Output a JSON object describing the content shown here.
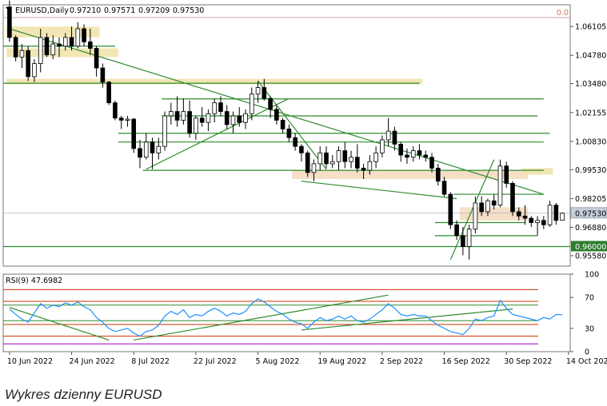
{
  "chart_data": [
    {
      "type": "candlestick",
      "header": {
        "symbol": "EURUSD,Daily",
        "values": [
          "0.97210",
          "0.97571",
          "0.97209",
          "0.97530"
        ]
      },
      "corner_label": "0.0",
      "ylim": [
        0.951,
        1.071
      ],
      "y_ticks": [
        "1.06105",
        "1.04780",
        "1.03480",
        "1.02155",
        "1.00830",
        "0.99530",
        "0.98205",
        "0.96880",
        "0.95580"
      ],
      "y_tick_values": [
        1.06105,
        1.0478,
        1.0348,
        1.02155,
        1.0083,
        0.9953,
        0.98205,
        0.9688,
        0.9558
      ],
      "current_price_label": "0.97530",
      "current_price": 0.9753,
      "highlight_level_label": "0.96000",
      "highlight_level": 0.96,
      "x_ticks": [
        "10 Jun 2022",
        "24 Jun 2022",
        "8 Jul 2022",
        "22 Jul 2022",
        "5 Aug 2022",
        "19 Aug 2022",
        "2 Sep 2022",
        "16 Sep 2022",
        "30 Sep 2022",
        "14 Oct 2022"
      ],
      "x_tick_index": [
        0,
        10,
        20,
        30,
        40,
        50,
        60,
        70,
        80,
        90
      ],
      "candles": [
        [
          1.07,
          1.073,
          1.054,
          1.056
        ],
        [
          1.056,
          1.057,
          1.045,
          1.047
        ],
        [
          1.047,
          1.053,
          1.042,
          1.05
        ],
        [
          1.05,
          1.052,
          1.036,
          1.038
        ],
        [
          1.038,
          1.046,
          1.0355,
          1.044
        ],
        [
          1.044,
          1.06,
          1.04,
          1.056
        ],
        [
          1.056,
          1.058,
          1.047,
          1.048
        ],
        [
          1.048,
          1.057,
          1.046,
          1.053
        ],
        [
          1.053,
          1.056,
          1.047,
          1.052
        ],
        [
          1.052,
          1.058,
          1.05,
          1.056
        ],
        [
          1.056,
          1.061,
          1.05,
          1.052
        ],
        [
          1.052,
          1.063,
          1.051,
          1.06
        ],
        [
          1.06,
          1.062,
          1.052,
          1.054
        ],
        [
          1.054,
          1.06,
          1.048,
          1.051
        ],
        [
          1.051,
          1.052,
          1.038,
          1.042
        ],
        [
          1.042,
          1.044,
          1.033,
          1.0355
        ],
        [
          1.0355,
          1.036,
          1.025,
          1.026
        ],
        [
          1.026,
          1.027,
          1.018,
          1.019
        ],
        [
          1.019,
          1.02,
          1.014,
          1.018
        ],
        [
          1.018,
          1.02,
          1.015,
          1.0185
        ],
        [
          1.0185,
          1.019,
          1.003,
          1.005
        ],
        [
          1.005,
          1.009,
          0.996,
          1.001
        ],
        [
          1.001,
          1.012,
          1.0,
          1.008
        ],
        [
          1.008,
          1.01,
          0.9955,
          1.003
        ],
        [
          1.003,
          1.01,
          1.0,
          1.006
        ],
        [
          1.006,
          1.022,
          1.004,
          1.02
        ],
        [
          1.02,
          1.026,
          1.016,
          1.022
        ],
        [
          1.022,
          1.029,
          1.015,
          1.018
        ],
        [
          1.018,
          1.028,
          1.016,
          1.022
        ],
        [
          1.022,
          1.027,
          1.01,
          1.012
        ],
        [
          1.012,
          1.02,
          1.009,
          1.019
        ],
        [
          1.019,
          1.024,
          1.015,
          1.017
        ],
        [
          1.017,
          1.023,
          1.013,
          1.021
        ],
        [
          1.021,
          1.028,
          1.017,
          1.026
        ],
        [
          1.026,
          1.029,
          1.02,
          1.022
        ],
        [
          1.022,
          1.025,
          1.014,
          1.016
        ],
        [
          1.016,
          1.022,
          1.012,
          1.02
        ],
        [
          1.02,
          1.024,
          1.015,
          1.017
        ],
        [
          1.017,
          1.023,
          1.014,
          1.021
        ],
        [
          1.021,
          1.033,
          1.018,
          1.03
        ],
        [
          1.03,
          1.036,
          1.026,
          1.033
        ],
        [
          1.033,
          1.037,
          1.027,
          1.028
        ],
        [
          1.028,
          1.029,
          1.019,
          1.023
        ],
        [
          1.023,
          1.025,
          1.016,
          1.018
        ],
        [
          1.018,
          1.019,
          1.012,
          1.014
        ],
        [
          1.014,
          1.016,
          1.008,
          1.01
        ],
        [
          1.01,
          1.012,
          1.004,
          1.006
        ],
        [
          1.006,
          1.007,
          0.999,
          1.003
        ],
        [
          1.003,
          1.004,
          0.992,
          0.994
        ],
        [
          0.994,
          1.0,
          0.99,
          0.998
        ],
        [
          0.998,
          1.006,
          0.995,
          1.003
        ],
        [
          1.003,
          1.006,
          0.996,
          0.998
        ],
        [
          0.998,
          1.002,
          0.996,
          0.999
        ],
        [
          0.999,
          1.006,
          0.995,
          1.004
        ],
        [
          1.004,
          1.008,
          0.996,
          0.999
        ],
        [
          0.999,
          1.004,
          0.996,
          1.001
        ],
        [
          1.001,
          1.007,
          0.994,
          0.996
        ],
        [
          0.996,
          0.998,
          0.991,
          0.995
        ],
        [
          0.995,
          1.002,
          0.993,
          0.999
        ],
        [
          0.999,
          1.006,
          0.996,
          1.003
        ],
        [
          1.003,
          1.011,
          1.001,
          1.009
        ],
        [
          1.009,
          1.019,
          1.006,
          1.013
        ],
        [
          1.013,
          1.015,
          1.004,
          1.007
        ],
        [
          1.007,
          1.008,
          0.999,
          1.002
        ],
        [
          1.002,
          1.005,
          0.998,
          1.001
        ],
        [
          1.001,
          1.006,
          0.999,
          1.004
        ],
        [
          1.004,
          1.007,
          1.0,
          1.002
        ],
        [
          1.002,
          1.004,
          0.999,
          1.001
        ],
        [
          1.001,
          1.003,
          0.994,
          0.996
        ],
        [
          0.996,
          0.998,
          0.988,
          0.99
        ],
        [
          0.99,
          0.992,
          0.983,
          0.984
        ],
        [
          0.984,
          0.985,
          0.968,
          0.97
        ],
        [
          0.97,
          0.972,
          0.963,
          0.965
        ],
        [
          0.965,
          0.969,
          0.956,
          0.96
        ],
        [
          0.96,
          0.97,
          0.954,
          0.968
        ],
        [
          0.968,
          0.983,
          0.966,
          0.98
        ],
        [
          0.98,
          0.983,
          0.974,
          0.976
        ],
        [
          0.976,
          0.982,
          0.974,
          0.981
        ],
        [
          0.981,
          0.984,
          0.977,
          0.979
        ],
        [
          0.979,
          0.9999,
          0.978,
          0.997
        ],
        [
          0.997,
          0.999,
          0.987,
          0.989
        ],
        [
          0.989,
          0.99,
          0.974,
          0.976
        ],
        [
          0.976,
          0.978,
          0.972,
          0.974
        ],
        [
          0.974,
          0.979,
          0.97,
          0.973
        ],
        [
          0.973,
          0.974,
          0.969,
          0.971
        ],
        [
          0.971,
          0.974,
          0.965,
          0.972
        ],
        [
          0.972,
          0.974,
          0.968,
          0.97
        ],
        [
          0.97,
          0.981,
          0.969,
          0.979
        ],
        [
          0.979,
          0.98,
          0.97,
          0.972
        ],
        [
          0.9721,
          0.97571,
          0.97209,
          0.9753
        ]
      ],
      "zones": [
        {
          "y1": 1.056,
          "y2": 1.061,
          "i1": 0,
          "i2": 14,
          "color": "#f0e2a8"
        },
        {
          "y1": 1.047,
          "y2": 1.051,
          "i1": 0,
          "i2": 17,
          "color": "#f0e2a8"
        },
        {
          "y1": 1.0345,
          "y2": 1.037,
          "i1": 0,
          "i2": 66,
          "color": "#f0e2a8"
        },
        {
          "y1": 0.991,
          "y2": 0.995,
          "i1": 46,
          "i2": 83,
          "color": "#f5d9bc"
        },
        {
          "y1": 0.993,
          "y2": 0.996,
          "i1": 83,
          "i2": 87,
          "color": "#f0e2a8"
        },
        {
          "y1": 0.972,
          "y2": 0.978,
          "i1": 73,
          "i2": 83,
          "color": "#f5d9bc"
        }
      ],
      "hlines": [
        {
          "y": 1.052,
          "i1": 0,
          "i2": 17
        },
        {
          "y": 1.035,
          "i1": 0,
          "i2": 66
        },
        {
          "y": 1.0278,
          "i1": 25,
          "i2": 86
        },
        {
          "y": 1.02,
          "i1": 25,
          "i2": 85
        },
        {
          "y": 1.012,
          "i1": 18,
          "i2": 87
        },
        {
          "y": 1.008,
          "i1": 18,
          "i2": 86
        },
        {
          "y": 0.995,
          "i1": 22,
          "i2": 86
        },
        {
          "y": 0.984,
          "i1": 72,
          "i2": 86
        },
        {
          "y": 0.971,
          "i1": 69,
          "i2": 83
        },
        {
          "y": 0.965,
          "i1": 69,
          "i2": 85
        },
        {
          "y": 0.96,
          "i1": 0,
          "i2": 89
        }
      ],
      "trendlines": [
        {
          "p1": [
            0,
            1.06
          ],
          "p2": [
            86,
            0.984
          ]
        },
        {
          "p1": [
            22,
            0.9955
          ],
          "p2": [
            45,
            1.028
          ]
        },
        {
          "p1": [
            40,
            1.036
          ],
          "p2": [
            51,
            0.9955
          ]
        },
        {
          "p1": [
            47,
            0.99
          ],
          "p2": [
            72,
            0.982
          ]
        },
        {
          "p1": [
            71,
            0.954
          ],
          "p2": [
            78,
            0.9999
          ]
        }
      ],
      "rsi_label": "RSI(9) 47.6982",
      "rsi_ylim": [
        0,
        100
      ],
      "rsi_ticks": [
        "100",
        "70",
        "30",
        "0"
      ],
      "rsi_tick_values": [
        100,
        70,
        30,
        0
      ],
      "rsi_levels": [
        {
          "value": 80,
          "color": "#cc3300"
        },
        {
          "value": 65,
          "color": "#cc3300"
        },
        {
          "value": 60,
          "color": "#2e8b2e"
        },
        {
          "value": 40,
          "color": "#2e8b2e"
        },
        {
          "value": 35,
          "color": "#cc3300"
        },
        {
          "value": 20,
          "color": "#cc3300"
        },
        {
          "value": 10,
          "color": "#9900cc"
        }
      ],
      "rsi_trendlines": [
        {
          "p1": [
            0,
            57
          ],
          "p2": [
            16,
            15
          ]
        },
        {
          "p1": [
            20,
            15
          ],
          "p2": [
            61,
            73
          ]
        },
        {
          "p1": [
            47,
            28
          ],
          "p2": [
            81,
            55
          ]
        }
      ],
      "rsi_values": [
        55,
        48,
        42,
        38,
        50,
        62,
        56,
        60,
        58,
        63,
        60,
        64,
        58,
        54,
        44,
        38,
        30,
        26,
        28,
        30,
        24,
        20,
        26,
        28,
        34,
        46,
        52,
        48,
        54,
        44,
        48,
        46,
        52,
        56,
        52,
        46,
        50,
        48,
        52,
        62,
        68,
        64,
        58,
        52,
        48,
        42,
        38,
        36,
        30,
        38,
        44,
        40,
        42,
        46,
        42,
        46,
        40,
        38,
        42,
        48,
        54,
        62,
        56,
        48,
        46,
        48,
        46,
        46,
        40,
        34,
        30,
        26,
        24,
        22,
        30,
        42,
        40,
        44,
        46,
        66,
        56,
        48,
        46,
        44,
        42,
        40,
        44,
        42,
        48,
        47.6982
      ]
    }
  ],
  "caption": "Wykres dzienny EURUSD"
}
